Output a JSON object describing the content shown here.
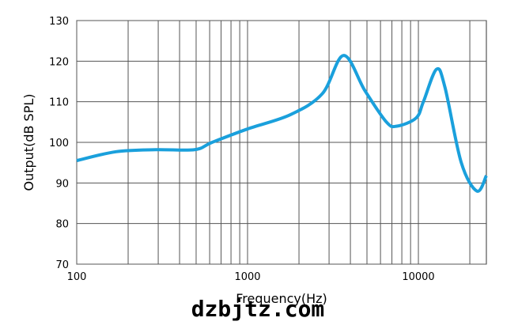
{
  "chart_data": {
    "type": "line",
    "x_label": "Frequency(Hz)",
    "y_label": "Output(dB SPL)",
    "watermark": "dzbjtz.com",
    "log_x": true,
    "grid": true,
    "xlim": [
      100,
      25000
    ],
    "ylim": [
      70,
      130
    ],
    "xticks": [
      100,
      1000,
      10000
    ],
    "x_minor_ticks": [
      200,
      300,
      400,
      500,
      600,
      700,
      800,
      900,
      2000,
      3000,
      4000,
      5000,
      6000,
      7000,
      8000,
      9000,
      20000
    ],
    "yticks": [
      70,
      80,
      90,
      100,
      110,
      120,
      130
    ],
    "series": [
      {
        "name": "Output",
        "color": "#1aa0dc",
        "x": [
          100,
          170,
          290,
          490,
          620,
          1000,
          1780,
          2740,
          3650,
          4870,
          6500,
          7500,
          9700,
          10700,
          12760,
          14300,
          17800,
          22000,
          25000
        ],
        "values": [
          95.5,
          97.7,
          98.2,
          98.2,
          100,
          103.3,
          106.8,
          112,
          121.4,
          112.7,
          105,
          104,
          106,
          110,
          118,
          113.6,
          95.1,
          88,
          91.8
        ]
      }
    ]
  }
}
